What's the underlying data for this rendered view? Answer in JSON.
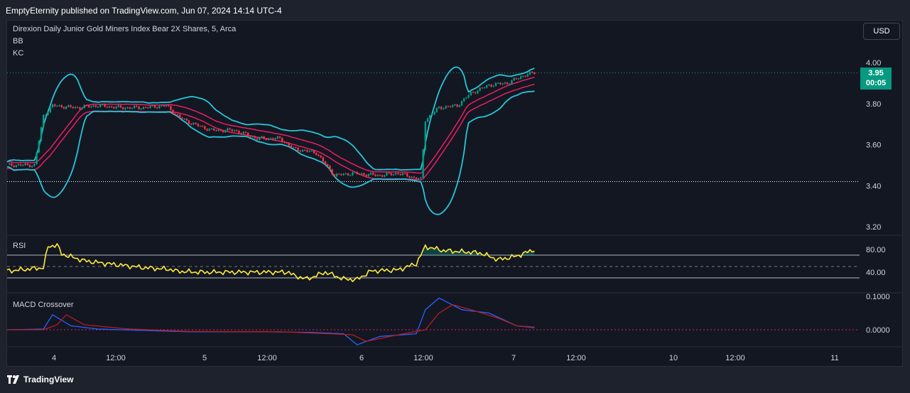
{
  "header": {
    "published": "EmptyEternity published on TradingView.com, Jun 07, 2024 14:14 UTC-4"
  },
  "footer": {
    "logo_text": "TradingView"
  },
  "legend": {
    "symbol": "Direxion Daily Junior Gold Miners Index Bear 2X Shares, 5, Arca",
    "bb": "BB",
    "kc": "KC",
    "rsi": "RSI",
    "macd": "MACD Crossover"
  },
  "currency_button": "USD",
  "last_price": {
    "value": "3.95",
    "countdown": "00:05"
  },
  "colors": {
    "background": "#131722",
    "up": "#089981",
    "down": "#f23645",
    "bb": "#26c6da",
    "kc": "#e91e63",
    "rsi": "#ffeb3b",
    "macd": "#2962ff",
    "signal": "#b71c1c"
  },
  "chart_data": [
    {
      "type": "candlestick",
      "title": "Direxion Daily Junior Gold Miners Index Bear 2X Shares, 5, Arca",
      "indicators": [
        "BB",
        "KC"
      ],
      "y_ticks": [
        "4.00",
        "3.80",
        "3.60",
        "3.40",
        "3.20"
      ],
      "ylim": [
        3.15,
        4.05
      ],
      "x_ticks": [
        "4",
        "12:00",
        "5",
        "12:00",
        "6",
        "12:00",
        "7",
        "12:00",
        "10",
        "12:00",
        "11"
      ],
      "last_price": 3.95,
      "close_anchors": [
        {
          "t": 0,
          "close": 3.5
        },
        {
          "t": 6,
          "close": 3.5
        },
        {
          "t": 8,
          "close": 3.74
        },
        {
          "t": 10,
          "close": 3.79
        },
        {
          "t": 15,
          "close": 3.78
        },
        {
          "t": 20,
          "close": 3.79
        },
        {
          "t": 25,
          "close": 3.78
        },
        {
          "t": 30,
          "close": 3.78
        },
        {
          "t": 35,
          "close": 3.79
        },
        {
          "t": 38,
          "close": 3.73
        },
        {
          "t": 41,
          "close": 3.7
        },
        {
          "t": 45,
          "close": 3.67
        },
        {
          "t": 50,
          "close": 3.67
        },
        {
          "t": 55,
          "close": 3.63
        },
        {
          "t": 60,
          "close": 3.63
        },
        {
          "t": 63,
          "close": 3.58
        },
        {
          "t": 68,
          "close": 3.56
        },
        {
          "t": 72,
          "close": 3.45
        },
        {
          "t": 76,
          "close": 3.46
        },
        {
          "t": 82,
          "close": 3.45
        },
        {
          "t": 86,
          "close": 3.46
        },
        {
          "t": 91,
          "close": 3.43
        },
        {
          "t": 92,
          "close": 3.72
        },
        {
          "t": 95,
          "close": 3.78
        },
        {
          "t": 99,
          "close": 3.79
        },
        {
          "t": 102,
          "close": 3.85
        },
        {
          "t": 106,
          "close": 3.89
        },
        {
          "t": 110,
          "close": 3.9
        },
        {
          "t": 114,
          "close": 3.94
        },
        {
          "t": 116,
          "close": 3.95
        }
      ]
    },
    {
      "type": "line",
      "title": "RSI",
      "y_ticks": [
        "80.00",
        "40.00"
      ],
      "ylim": [
        12,
        92
      ],
      "bands": [
        70,
        30
      ],
      "midline": 50,
      "series": [
        {
          "name": "RSI",
          "points": [
            {
              "t": 0,
              "v": 42
            },
            {
              "t": 8,
              "v": 48
            },
            {
              "t": 9,
              "v": 85
            },
            {
              "t": 11,
              "v": 88
            },
            {
              "t": 12,
              "v": 72
            },
            {
              "t": 17,
              "v": 60
            },
            {
              "t": 22,
              "v": 55
            },
            {
              "t": 30,
              "v": 48
            },
            {
              "t": 36,
              "v": 45
            },
            {
              "t": 37,
              "v": 42
            },
            {
              "t": 42,
              "v": 40
            },
            {
              "t": 52,
              "v": 40
            },
            {
              "t": 62,
              "v": 40
            },
            {
              "t": 63,
              "v": 34
            },
            {
              "t": 66,
              "v": 28
            },
            {
              "t": 70,
              "v": 40
            },
            {
              "t": 74,
              "v": 28
            },
            {
              "t": 77,
              "v": 27
            },
            {
              "t": 80,
              "v": 42
            },
            {
              "t": 86,
              "v": 44
            },
            {
              "t": 90,
              "v": 55
            },
            {
              "t": 92,
              "v": 85
            },
            {
              "t": 96,
              "v": 78
            },
            {
              "t": 104,
              "v": 74
            },
            {
              "t": 108,
              "v": 62
            },
            {
              "t": 112,
              "v": 68
            },
            {
              "t": 116,
              "v": 80
            }
          ]
        }
      ]
    },
    {
      "type": "line",
      "title": "MACD Crossover",
      "y_ticks": [
        "0.1000",
        "0.0000"
      ],
      "ylim": [
        -0.05,
        0.1
      ],
      "series": [
        {
          "name": "MACD",
          "points": [
            {
              "t": 0,
              "v": 0
            },
            {
              "t": 8,
              "v": 0.002
            },
            {
              "t": 10,
              "v": 0.045
            },
            {
              "t": 14,
              "v": 0.012
            },
            {
              "t": 20,
              "v": 0.002
            },
            {
              "t": 40,
              "v": -0.006
            },
            {
              "t": 56,
              "v": -0.006
            },
            {
              "t": 67,
              "v": -0.008
            },
            {
              "t": 74,
              "v": -0.012
            },
            {
              "t": 77,
              "v": -0.045
            },
            {
              "t": 82,
              "v": -0.02
            },
            {
              "t": 90,
              "v": -0.012
            },
            {
              "t": 92,
              "v": 0.06
            },
            {
              "t": 95,
              "v": 0.095
            },
            {
              "t": 100,
              "v": 0.06
            },
            {
              "t": 106,
              "v": 0.05
            },
            {
              "t": 112,
              "v": 0.012
            },
            {
              "t": 116,
              "v": 0.006
            }
          ]
        },
        {
          "name": "Signal",
          "points": [
            {
              "t": 0,
              "v": 0
            },
            {
              "t": 8,
              "v": 0.0
            },
            {
              "t": 11,
              "v": 0.015
            },
            {
              "t": 13,
              "v": 0.045
            },
            {
              "t": 17,
              "v": 0.015
            },
            {
              "t": 26,
              "v": 0.003
            },
            {
              "t": 40,
              "v": -0.005
            },
            {
              "t": 60,
              "v": -0.006
            },
            {
              "t": 76,
              "v": -0.015
            },
            {
              "t": 79,
              "v": -0.035
            },
            {
              "t": 86,
              "v": -0.015
            },
            {
              "t": 92,
              "v": 0.0
            },
            {
              "t": 95,
              "v": 0.05
            },
            {
              "t": 98,
              "v": 0.075
            },
            {
              "t": 102,
              "v": 0.06
            },
            {
              "t": 108,
              "v": 0.035
            },
            {
              "t": 112,
              "v": 0.012
            },
            {
              "t": 116,
              "v": 0.008
            }
          ]
        }
      ]
    }
  ]
}
